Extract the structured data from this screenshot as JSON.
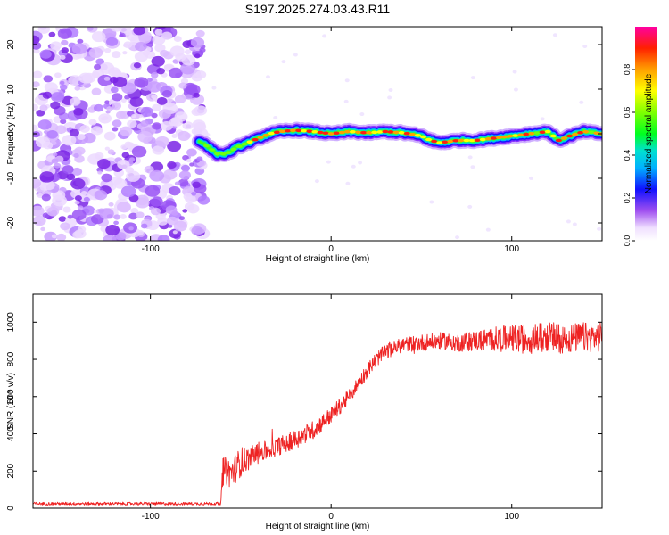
{
  "figure": {
    "title": "S197.2025.274.03.43.R11"
  },
  "chart_data": [
    {
      "type": "heatmap",
      "title": "S197.2025.274.03.43.R11",
      "xlabel": "Height of straight line (km)",
      "ylabel": "Frequency (Hz)",
      "xlim": [
        -165,
        150
      ],
      "ylim": [
        -24,
        24
      ],
      "xticks": [
        -100,
        0,
        100
      ],
      "yticks": [
        -20,
        -10,
        0,
        10,
        20
      ],
      "xtick_labels": [
        "-100",
        "0",
        "100"
      ],
      "ytick_labels": [
        "-20",
        "-10",
        "0",
        "10",
        "20"
      ],
      "noise_region_x": [
        -165,
        -72
      ],
      "signal_onset_x": -73,
      "signal_ridge": {
        "x": [
          -73,
          -68,
          -63,
          -58,
          -52,
          -46,
          -40,
          -34,
          -28,
          -20,
          -10,
          0,
          10,
          20,
          30,
          40,
          50,
          55,
          60,
          70,
          80,
          90,
          100,
          110,
          120,
          126,
          132,
          140,
          150
        ],
        "freq": [
          -1.5,
          -3.0,
          -4.5,
          -4.5,
          -3.0,
          -2.0,
          -1.0,
          0.0,
          0.5,
          0.8,
          0.5,
          0.0,
          0.5,
          0.2,
          0.5,
          0.2,
          -0.5,
          -1.5,
          -2.0,
          -1.5,
          -1.5,
          -1.0,
          -0.5,
          0.0,
          0.5,
          -1.5,
          -0.5,
          0.5,
          0.0
        ]
      },
      "colorbar": {
        "label": "Normalized spectral amplitude",
        "range": [
          0,
          1
        ],
        "ticks": [
          0.0,
          0.2,
          0.4,
          0.6,
          0.8
        ],
        "tick_labels": [
          "0.0",
          "0.2",
          "0.4",
          "0.6",
          "0.8"
        ]
      }
    },
    {
      "type": "line",
      "xlabel": "Height of straight line (km)",
      "ylabel": "SNR (10 * v/v)",
      "xlim": [
        -165,
        150
      ],
      "ylim": [
        0,
        1150
      ],
      "xticks": [
        -100,
        0,
        100
      ],
      "yticks": [
        0,
        200,
        400,
        600,
        800,
        1000
      ],
      "xtick_labels": [
        "-100",
        "0",
        "100"
      ],
      "ytick_labels": [
        "0",
        "200",
        "400",
        "600",
        "800",
        "1000"
      ],
      "series": [
        {
          "name": "SNR",
          "color": "#ee2222",
          "x": [
            -165,
            -140,
            -120,
            -100,
            -80,
            -61,
            -60,
            -55,
            -50,
            -45,
            -40,
            -35,
            -30,
            -20,
            -10,
            0,
            10,
            20,
            25,
            30,
            40,
            50,
            60,
            70,
            80,
            90,
            100,
            110,
            120,
            130,
            140,
            150
          ],
          "y": [
            25,
            25,
            25,
            25,
            25,
            25,
            200,
            190,
            250,
            270,
            300,
            310,
            330,
            370,
            420,
            500,
            600,
            740,
            800,
            840,
            880,
            890,
            900,
            890,
            900,
            910,
            910,
            910,
            920,
            910,
            920,
            920
          ],
          "noise_amplitude": [
            8,
            8,
            8,
            8,
            8,
            8,
            80,
            80,
            80,
            60,
            60,
            50,
            50,
            50,
            50,
            45,
            40,
            40,
            40,
            40,
            40,
            45,
            45,
            50,
            55,
            65,
            75,
            80,
            85,
            80,
            80,
            80
          ]
        }
      ]
    }
  ]
}
